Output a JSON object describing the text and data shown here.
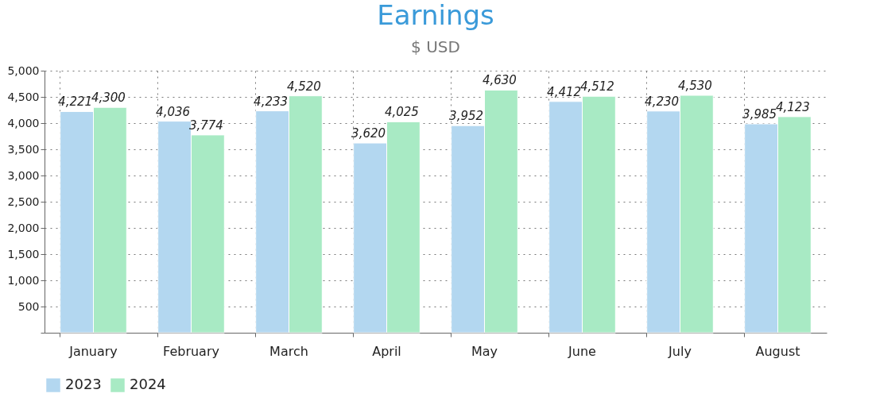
{
  "chart_data": {
    "type": "bar",
    "title": "Earnings",
    "subtitle": "$ USD",
    "categories": [
      "January",
      "February",
      "March",
      "April",
      "May",
      "June",
      "July",
      "August"
    ],
    "series": [
      {
        "name": "2023",
        "color": "#b3d7f0",
        "values": [
          4221,
          4036,
          4233,
          3620,
          3952,
          4412,
          4230,
          3985
        ],
        "value_labels": [
          "4,221",
          "4,036",
          "4,233",
          "3,620",
          "3,952",
          "4,412",
          "4,230",
          "3,985"
        ]
      },
      {
        "name": "2024",
        "color": "#a8eac4",
        "values": [
          4300,
          3774,
          4520,
          4025,
          4630,
          4512,
          4530,
          4123
        ],
        "value_labels": [
          "4,300",
          "3,774",
          "4,520",
          "4,025",
          "4,630",
          "4,512",
          "4,530",
          "4,123"
        ]
      }
    ],
    "ylim": [
      0,
      5000
    ],
    "yticks": [
      {
        "value": 0,
        "label": null
      },
      500,
      {
        "value": 1000,
        "label": "1,000"
      },
      {
        "value": 1500,
        "label": "1,500"
      },
      {
        "value": 2000,
        "label": "2,000"
      },
      {
        "value": 2500,
        "label": "2,500"
      },
      {
        "value": 3000,
        "label": "3,000"
      },
      {
        "value": 3500,
        "label": "3,500"
      },
      {
        "value": 4000,
        "label": "4,000"
      },
      {
        "value": 4500,
        "label": "4,500"
      },
      {
        "value": 5000,
        "label": "5,000"
      }
    ],
    "grid": true,
    "legend": "bottom",
    "data_labels": true
  }
}
